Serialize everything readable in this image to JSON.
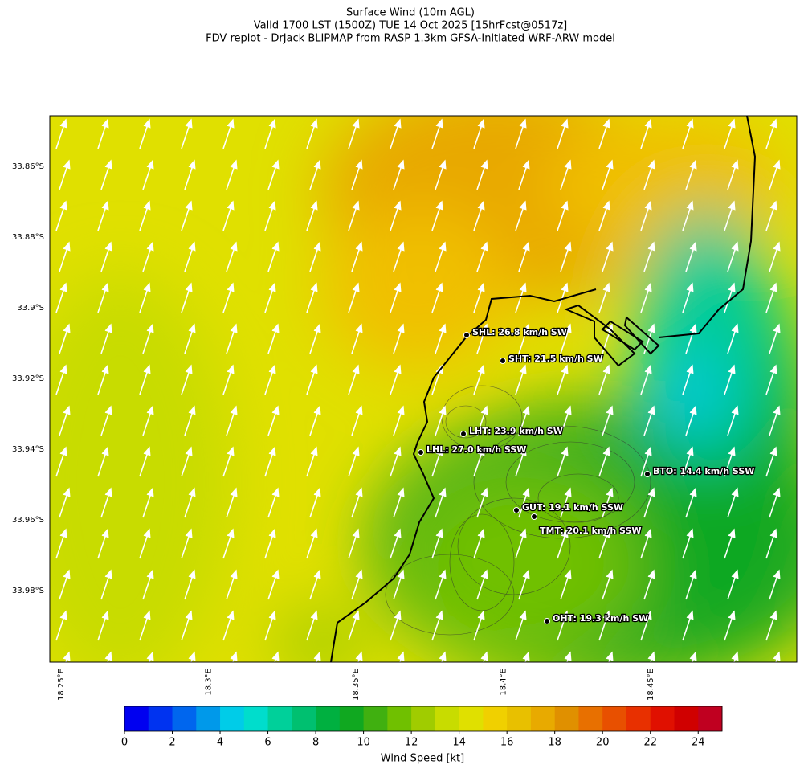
{
  "header": {
    "title": [
      "Surface Wind (10m AGL)",
      "Valid 1700 LST (1500Z) TUE 14 Oct 2025 [15hrFcst@0517z]",
      "FDV replot - DrJack BLIPMAP from RASP 1.3km GFSA-Initiated WRF-ARW model"
    ]
  },
  "map": {
    "lat_labels": [
      "33.86°S",
      "33.88°S",
      "33.9°S",
      "33.92°S",
      "33.94°S",
      "33.96°S",
      "33.98°S"
    ],
    "lon_labels": [
      "18.25°E",
      "18.3°E",
      "18.35°E",
      "18.4°E",
      "18.45°E"
    ],
    "stations": [
      {
        "label": "SHL: 26.8 km/h SW"
      },
      {
        "label": "SHT: 21.5 km/h SW"
      },
      {
        "label": "LHT: 23.9 km/h SW"
      },
      {
        "label": "LHL: 27.0 km/h SSW"
      },
      {
        "label": "BTO: 14.4 km/h SSW"
      },
      {
        "label": "GUT: 19.1 km/h SSW"
      },
      {
        "label": "TMT: 20.1 km/h SSW"
      },
      {
        "label": "OHT: 19.3 km/h SW"
      }
    ]
  },
  "colorbar": {
    "label": "Wind Speed [kt]",
    "lim": [
      0,
      25
    ],
    "ticks": [
      0,
      2,
      4,
      6,
      8,
      10,
      12,
      14,
      16,
      18,
      20,
      22,
      24
    ],
    "colors": [
      "#0000f0",
      "#0033f0",
      "#0066ee",
      "#0099ea",
      "#00cce8",
      "#00ddcc",
      "#00d09a",
      "#00c070",
      "#00b040",
      "#10a820",
      "#40b010",
      "#70c000",
      "#a0cc00",
      "#c8dc00",
      "#e0e000",
      "#f0d000",
      "#e8c000",
      "#e8aa00",
      "#e09000",
      "#e87000",
      "#e85000",
      "#e83000",
      "#e01000",
      "#d00000",
      "#c00020"
    ]
  }
}
